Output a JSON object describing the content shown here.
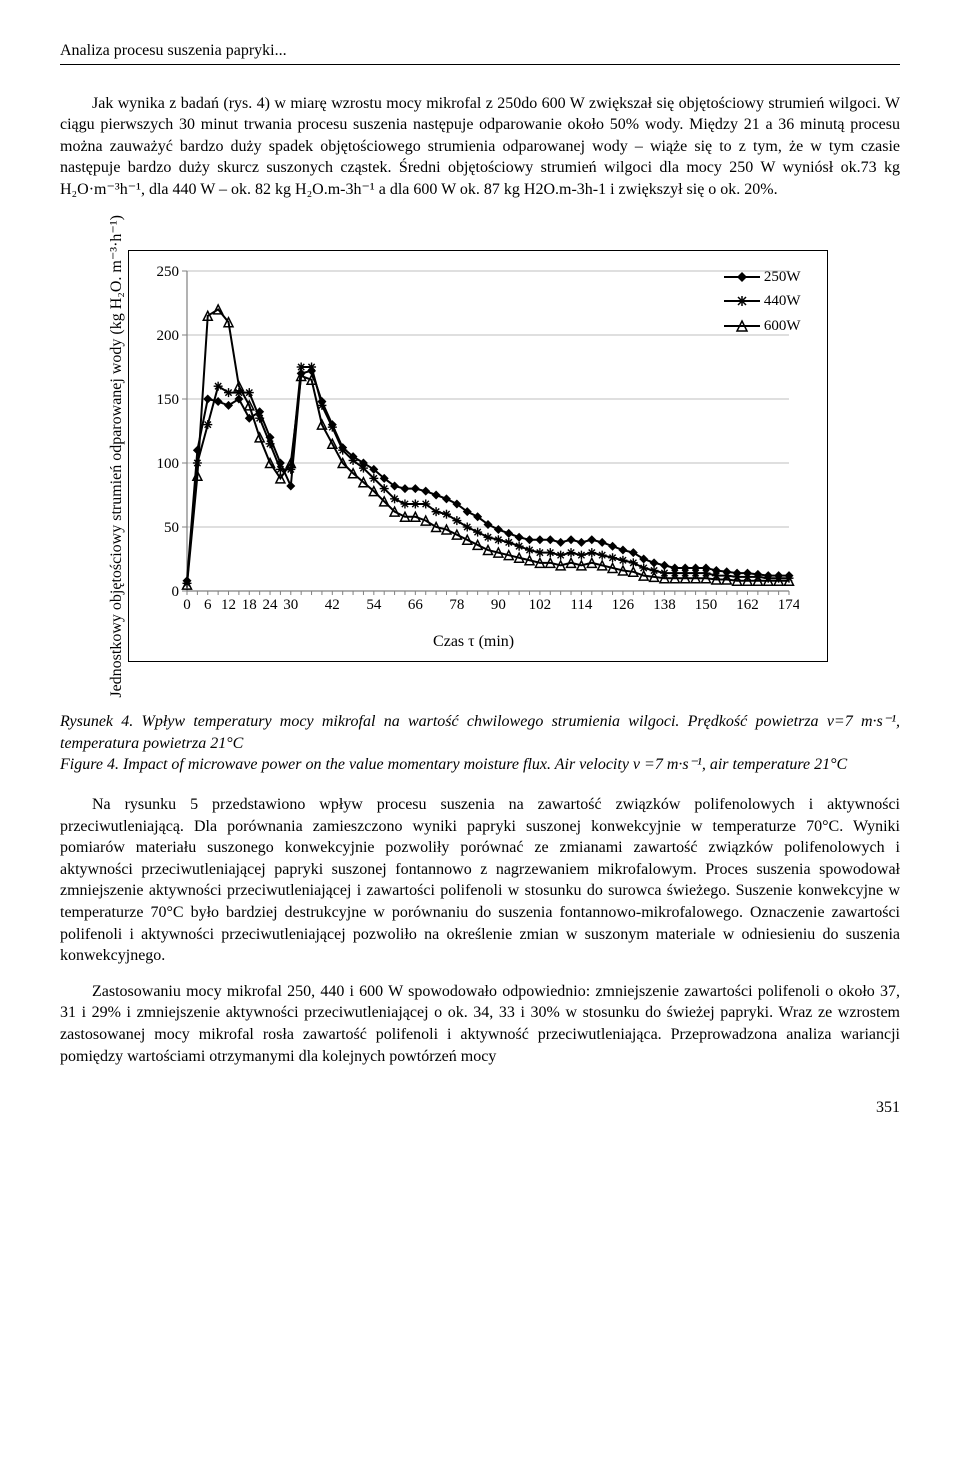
{
  "header": {
    "title": "Analiza procesu suszenia papryki..."
  },
  "paragraphs": {
    "p1": "Jak wynika z badań (rys. 4) w miarę wzrostu mocy mikrofal z 250do 600 W zwiększał się objętościowy strumień wilgoci. W ciągu pierwszych 30 minut trwania procesu suszenia następuje odparowanie około 50% wody. Między 21 a 36 minutą procesu można zauważyć bardzo duży spadek objętościowego strumienia odparowanej wody – wiąże się to z tym, że w tym czasie następuje bardzo duży skurcz suszonych cząstek. Średni objętościowy strumień wilgoci dla mocy 250 W wyniósł ok.73 kg H₂O·m⁻³h⁻¹, dla 440 W – ok. 82 kg H₂O.m-3h⁻¹ a dla 600 W ok. 87 kg H2O.m-3h-1 i zwiększył się o ok. 20%.",
    "caption": "Rysunek 4. Wpływ temperatury mocy mikrofal na wartość chwilowego strumienia wilgoci. Prędkość powietrza v=7 m·s⁻¹, temperatura powietrza 21°C\nFigure 4. Impact of microwave power on the value momentary moisture flux. Air velocity v =7 m·s⁻¹, air temperature 21°C",
    "p2": "Na rysunku 5 przedstawiono wpływ procesu suszenia na zawartość związków polifenolowych i aktywności przeciwutleniającą. Dla porównania zamieszczono wyniki papryki suszonej konwekcyjnie w temperaturze 70°C. Wyniki pomiarów materiału suszonego konwekcyjnie pozwoliły porównać ze zmianami zawartość związków polifenolowych i aktywności przeciwutleniającej papryki suszonej fontannowo z nagrzewaniem mikrofalowym. Proces suszenia spowodował zmniejszenie aktywności przeciwutleniającej i zawartości polifenoli w stosunku do surowca świeżego. Suszenie konwekcyjne w temperaturze 70°C było bardziej destrukcyjne w porównaniu do suszenia fontannowo-mikrofalowego. Oznaczenie zawartości polifenoli i aktywności przeciwutleniającej pozwoliło na określenie zmian w suszonym materiale w odniesieniu do suszenia konwekcyjnego.",
    "p3": "Zastosowaniu mocy mikrofal 250, 440 i 600 W spowodowało odpowiednio: zmniejszenie zawartości polifenoli o około 37, 31 i 29% i zmniejszenie aktywności przeciwutleniającej o ok. 34, 33 i 30% w stosunku do świeżej papryki. Wraz ze wzrostem zastosowanej mocy mikrofal rosła zawartość polifenoli i aktywność przeciwutleniająca. Przeprowadzona analiza wariancji pomiędzy wartościami otrzymanymi dla kolejnych powtórzeń mocy"
  },
  "chart": {
    "type": "line",
    "ylabel": "Jednostkowy objętościowy strumień odparowanej wody (kg H₂O. m⁻³·h⁻¹)",
    "xlabel": "Czas τ (min)",
    "ylim": [
      0,
      250
    ],
    "ytick_step": 50,
    "xticks": [
      0,
      6,
      12,
      18,
      24,
      30,
      42,
      54,
      66,
      78,
      90,
      102,
      114,
      126,
      138,
      150,
      162,
      174
    ],
    "plot_bg": "#ffffff",
    "grid_color": "#bfbfbf",
    "axis_color": "#808080",
    "line_color": "#000000",
    "font_size_axis": 15,
    "series": [
      {
        "name": "250W",
        "marker": "diamond",
        "color": "#000000",
        "x": [
          0,
          3,
          6,
          9,
          12,
          15,
          18,
          21,
          24,
          27,
          30,
          33,
          36,
          39,
          42,
          45,
          48,
          51,
          54,
          57,
          60,
          63,
          66,
          69,
          72,
          75,
          78,
          81,
          84,
          87,
          90,
          93,
          96,
          99,
          102,
          105,
          108,
          111,
          114,
          117,
          120,
          123,
          126,
          129,
          132,
          135,
          138,
          141,
          144,
          147,
          150,
          153,
          156,
          159,
          162,
          165,
          168,
          171,
          174
        ],
        "y": [
          8,
          110,
          150,
          148,
          145,
          150,
          135,
          140,
          120,
          100,
          82,
          170,
          172,
          148,
          130,
          112,
          105,
          100,
          95,
          88,
          82,
          80,
          80,
          78,
          75,
          72,
          68,
          62,
          58,
          52,
          48,
          45,
          42,
          40,
          40,
          40,
          38,
          40,
          38,
          40,
          38,
          35,
          32,
          30,
          25,
          22,
          20,
          18,
          18,
          18,
          18,
          16,
          15,
          14,
          14,
          13,
          12,
          12,
          12
        ]
      },
      {
        "name": "440W",
        "marker": "star",
        "color": "#000000",
        "x": [
          0,
          3,
          6,
          9,
          12,
          15,
          18,
          21,
          24,
          27,
          30,
          33,
          36,
          39,
          42,
          45,
          48,
          51,
          54,
          57,
          60,
          63,
          66,
          69,
          72,
          75,
          78,
          81,
          84,
          87,
          90,
          93,
          96,
          99,
          102,
          105,
          108,
          111,
          114,
          117,
          120,
          123,
          126,
          129,
          132,
          135,
          138,
          141,
          144,
          147,
          150,
          153,
          156,
          159,
          162,
          165,
          168,
          171,
          174
        ],
        "y": [
          6,
          100,
          130,
          160,
          155,
          155,
          155,
          135,
          115,
          95,
          95,
          175,
          175,
          145,
          128,
          110,
          102,
          96,
          88,
          80,
          72,
          68,
          68,
          68,
          62,
          60,
          55,
          50,
          46,
          42,
          40,
          38,
          35,
          32,
          30,
          30,
          28,
          30,
          28,
          30,
          28,
          26,
          24,
          22,
          18,
          16,
          14,
          14,
          14,
          14,
          14,
          12,
          12,
          11,
          11,
          11,
          10,
          10,
          10
        ]
      },
      {
        "name": "600W",
        "marker": "triangle",
        "color": "#000000",
        "x": [
          0,
          3,
          6,
          9,
          12,
          15,
          18,
          21,
          24,
          27,
          30,
          33,
          36,
          39,
          42,
          45,
          48,
          51,
          54,
          57,
          60,
          63,
          66,
          69,
          72,
          75,
          78,
          81,
          84,
          87,
          90,
          93,
          96,
          99,
          102,
          105,
          108,
          111,
          114,
          117,
          120,
          123,
          126,
          129,
          132,
          135,
          138,
          141,
          144,
          147,
          150,
          153,
          156,
          159,
          162,
          165,
          168,
          171,
          174
        ],
        "y": [
          5,
          90,
          215,
          220,
          210,
          160,
          145,
          120,
          100,
          88,
          100,
          168,
          165,
          130,
          115,
          100,
          92,
          85,
          78,
          70,
          62,
          58,
          58,
          55,
          50,
          48,
          44,
          40,
          36,
          32,
          30,
          28,
          26,
          24,
          22,
          22,
          20,
          22,
          20,
          22,
          20,
          18,
          16,
          15,
          12,
          11,
          10,
          10,
          10,
          10,
          10,
          9,
          9,
          8,
          8,
          8,
          8,
          8,
          8
        ]
      }
    ],
    "legend_labels": {
      "s0": "250W",
      "s1": "440W",
      "s2": "600W"
    }
  },
  "page_number": "351"
}
